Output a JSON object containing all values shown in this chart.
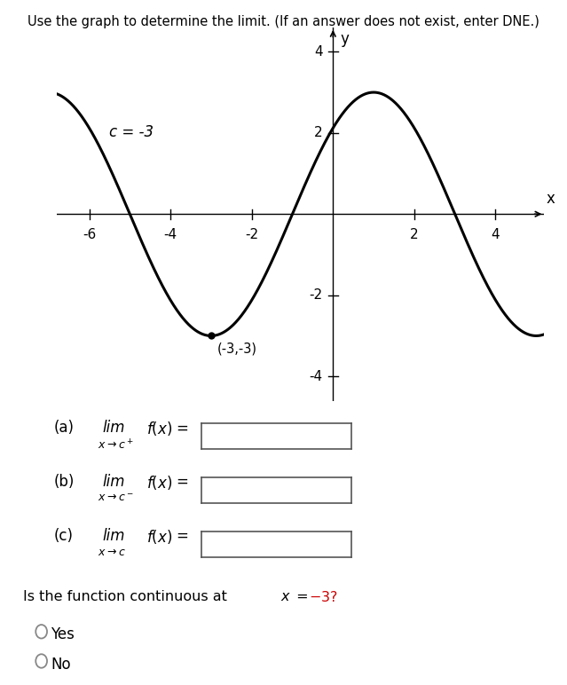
{
  "title": "Use the graph to determine the limit. (If an answer does not exist, enter DNE.)",
  "c_label": "c = -3",
  "min_point": [
    -3,
    -3
  ],
  "min_label": "(-3,-3)",
  "xlim": [
    -6.8,
    5.2
  ],
  "ylim": [
    -4.6,
    4.6
  ],
  "xticks": [
    -6,
    -4,
    -2,
    2,
    4
  ],
  "yticks": [
    -4,
    -2,
    2,
    4
  ],
  "xlabel": "x",
  "ylabel": "y",
  "curve_color": "#000000",
  "curve_linewidth": 2.2,
  "bg_color": "#ffffff",
  "text_color": "#000000",
  "red_color": "#cc0000",
  "yes_label": "Yes",
  "no_label": "No",
  "omega": 0.7854,
  "phase": 1.0,
  "amplitude": 3.0
}
